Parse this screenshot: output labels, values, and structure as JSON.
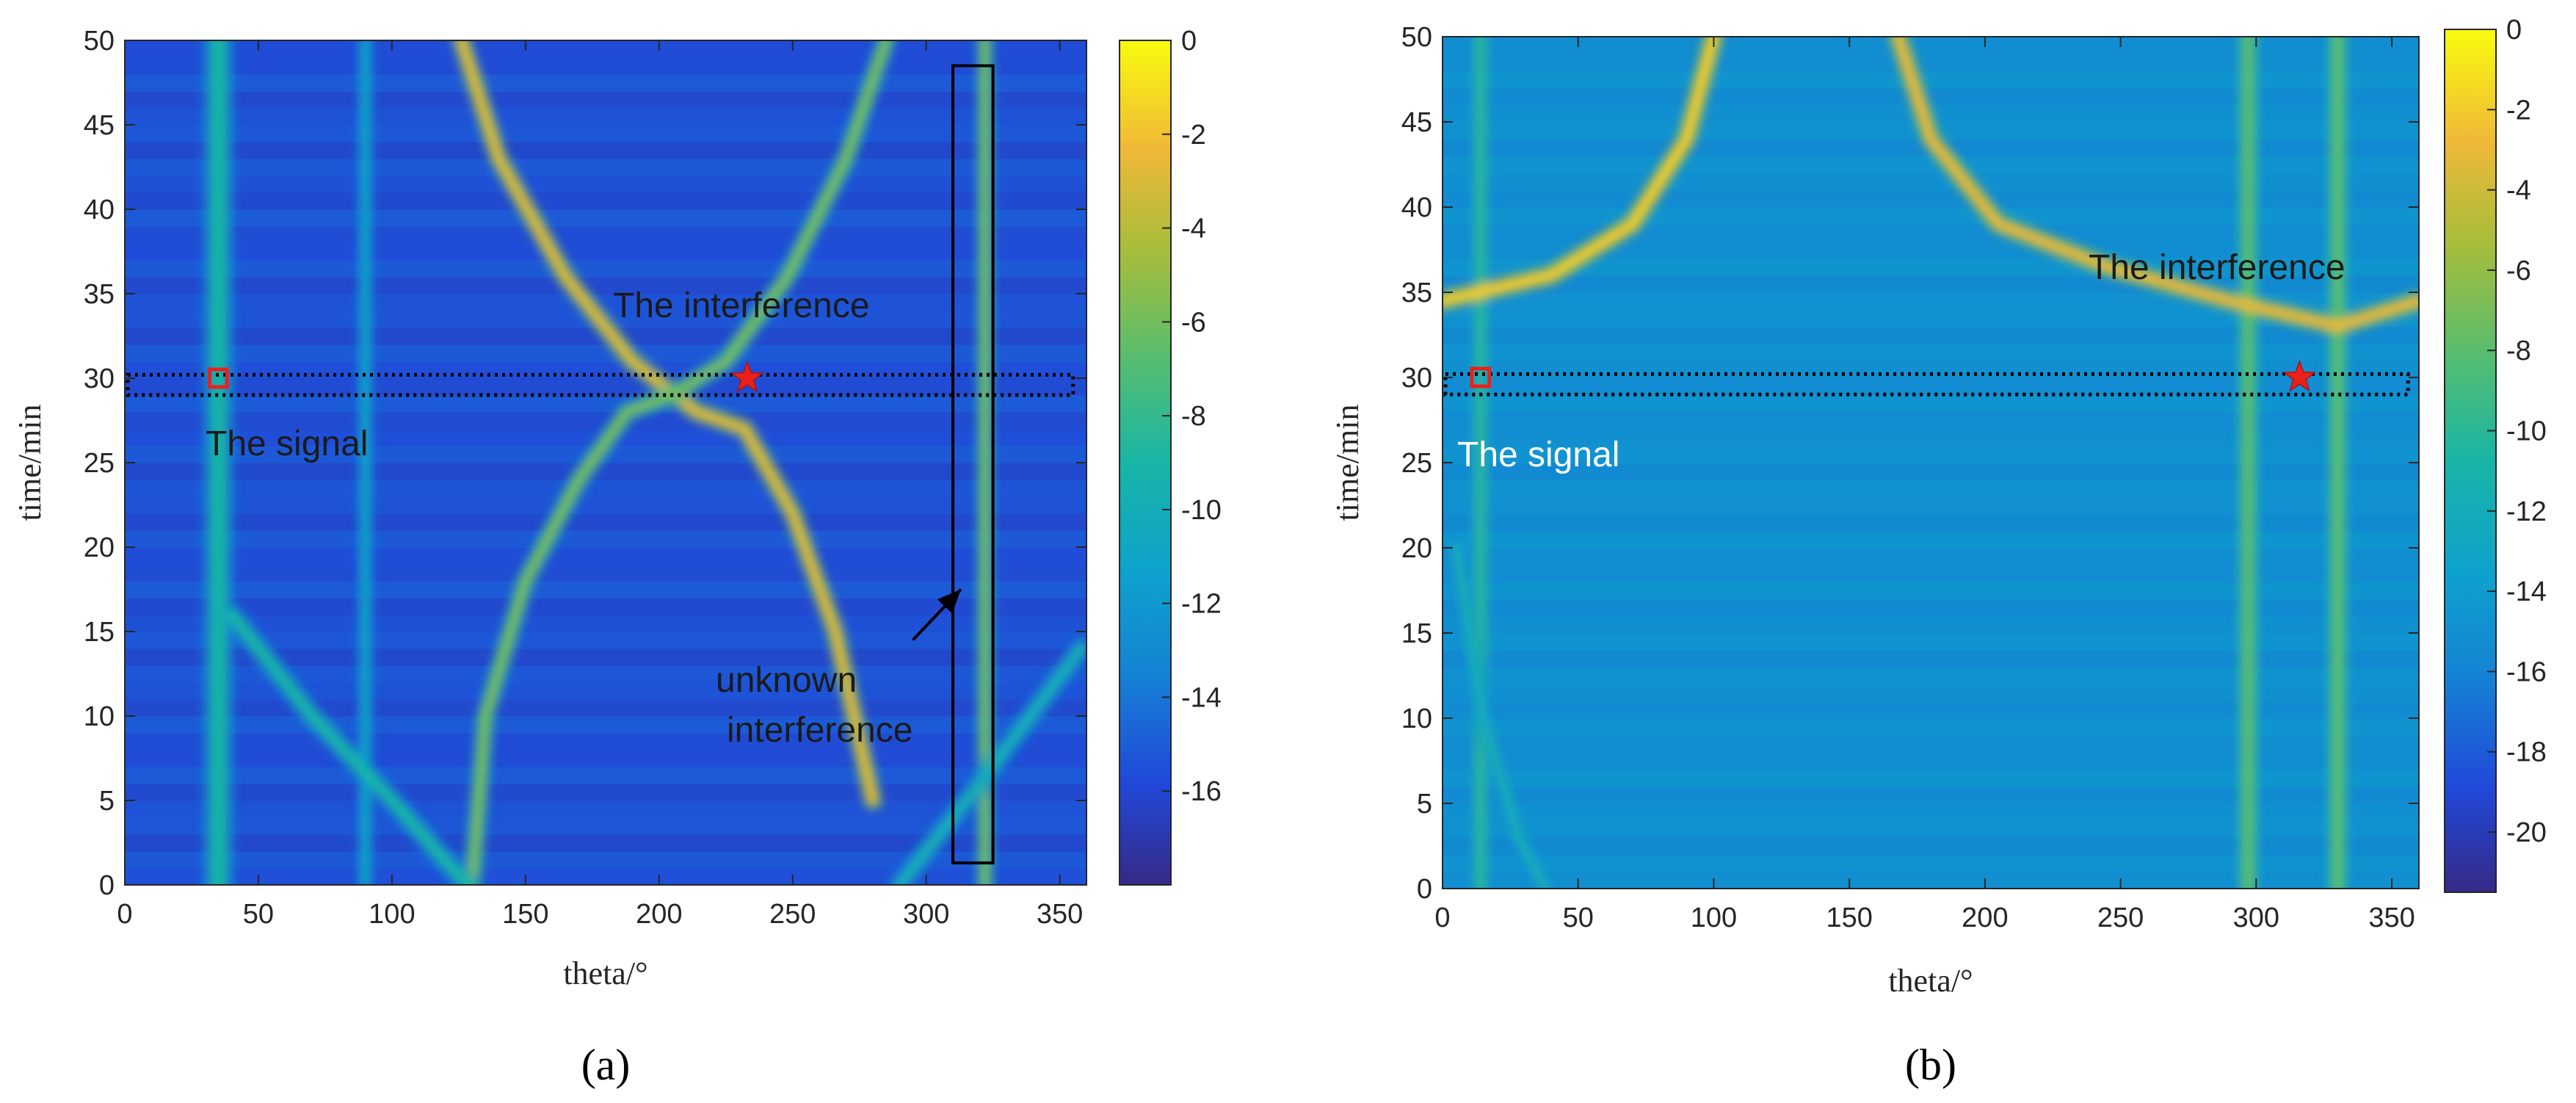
{
  "chart_data": [
    {
      "type": "heatmap",
      "panel_label": "(a)",
      "xlabel": "theta/°",
      "ylabel": "time/min",
      "xlim": [
        0,
        360
      ],
      "ylim": [
        0,
        50
      ],
      "xticks": [
        "0",
        "50",
        "100",
        "150",
        "200",
        "250",
        "300",
        "350"
      ],
      "yticks": [
        "0",
        "5",
        "10",
        "15",
        "20",
        "25",
        "30",
        "35",
        "40",
        "45",
        "50"
      ],
      "colorbar": {
        "ticks": [
          "0",
          "-2",
          "-4",
          "-6",
          "-8",
          "-10",
          "-12",
          "-14",
          "-16"
        ],
        "range": [
          -18,
          0
        ]
      },
      "background_level": -15.5,
      "features": [
        {
          "name": "signal track",
          "points": [
            [
              35,
              0
            ],
            [
              35,
              50
            ]
          ],
          "level": -9,
          "width": 14
        },
        {
          "name": "vertical track",
          "points": [
            [
              90,
              0
            ],
            [
              90,
              50
            ]
          ],
          "level": -11,
          "width": 8
        },
        {
          "name": "vertical track",
          "points": [
            [
              322,
              0
            ],
            [
              322,
              50
            ]
          ],
          "level": -6,
          "width": 8
        },
        {
          "name": "interference arc",
          "points": [
            [
              126,
              50
            ],
            [
              140,
              43
            ],
            [
              165,
              36
            ],
            [
              190,
              31
            ],
            [
              214,
              28
            ],
            [
              232,
              27
            ],
            [
              250,
              22
            ],
            [
              266,
              15
            ],
            [
              280,
              5
            ]
          ],
          "level": -3,
          "width": 9
        },
        {
          "name": "interference arc",
          "points": [
            [
              285,
              50
            ],
            [
              270,
              43
            ],
            [
              248,
              36
            ],
            [
              225,
              31
            ],
            [
              205,
              29
            ],
            [
              188,
              28
            ],
            [
              170,
              24
            ],
            [
              150,
              18
            ],
            [
              135,
              10
            ],
            [
              130,
              0
            ]
          ],
          "level": -6,
          "width": 9
        },
        {
          "name": "lower crossing",
          "points": [
            [
              40,
              16
            ],
            [
              70,
              10
            ],
            [
              100,
              5
            ],
            [
              128,
              0
            ]
          ],
          "level": -9,
          "width": 10
        },
        {
          "name": "lower crossing",
          "points": [
            [
              290,
              0
            ],
            [
              320,
              6
            ],
            [
              358,
              14
            ]
          ],
          "level": -10,
          "width": 10
        }
      ],
      "signal_marker": {
        "theta": 35,
        "time": 30,
        "label": "The signal"
      },
      "interference_marker": {
        "theta": 233,
        "time": 30,
        "label": "The interference"
      },
      "selection_band": {
        "theta": [
          0,
          355
        ],
        "time": [
          29,
          30.2
        ]
      },
      "unknown_box": {
        "theta": [
          310,
          325
        ],
        "time": [
          1.3,
          48.5
        ]
      },
      "unknown_arrow": {
        "from": [
          295,
          14.5
        ],
        "to": [
          313,
          17.5
        ],
        "label_line1": "unknown",
        "label_line2": "interference"
      }
    },
    {
      "type": "heatmap",
      "panel_label": "(b)",
      "xlabel": "theta/°",
      "ylabel": "time/min",
      "xlim": [
        0,
        360
      ],
      "ylim": [
        0,
        50
      ],
      "xticks": [
        "0",
        "50",
        "100",
        "150",
        "200",
        "250",
        "300",
        "350"
      ],
      "yticks": [
        "0",
        "5",
        "10",
        "15",
        "20",
        "25",
        "30",
        "35",
        "40",
        "45",
        "50"
      ],
      "colorbar": {
        "ticks": [
          "0",
          "-2",
          "-4",
          "-6",
          "-8",
          "-10",
          "-12",
          "-14",
          "-16",
          "-18",
          "-20"
        ],
        "range": [
          -21.5,
          0
        ]
      },
      "background_level": -15,
      "features": [
        {
          "name": "signal track",
          "points": [
            [
              14,
              0
            ],
            [
              14,
              50
            ]
          ],
          "level": -10,
          "width": 8
        },
        {
          "name": "interference track",
          "points": [
            [
              297,
              0
            ],
            [
              297,
              50
            ]
          ],
          "level": -8,
          "width": 10
        },
        {
          "name": "interference track",
          "points": [
            [
              330,
              0
            ],
            [
              330,
              50
            ]
          ],
          "level": -8,
          "width": 10
        },
        {
          "name": "interference arc",
          "points": [
            [
              0,
              34.5
            ],
            [
              40,
              36
            ],
            [
              70,
              39
            ],
            [
              90,
              44
            ],
            [
              100,
              50
            ]
          ],
          "level": -2,
          "width": 9
        },
        {
          "name": "interference arc",
          "points": [
            [
              168,
              50
            ],
            [
              180,
              44
            ],
            [
              205,
              39
            ],
            [
              245,
              36.5
            ],
            [
              290,
              34.5
            ],
            [
              330,
              33
            ],
            [
              360,
              34.5
            ]
          ],
          "level": -3,
          "width": 9
        },
        {
          "name": "lower arc",
          "points": [
            [
              5,
              20
            ],
            [
              15,
              10
            ],
            [
              28,
              3
            ],
            [
              38,
              0
            ]
          ],
          "level": -12,
          "width": 8
        }
      ],
      "signal_marker": {
        "theta": 14,
        "time": 30,
        "label": "The signal"
      },
      "interference_marker": {
        "theta": 316,
        "time": 30,
        "label": "The interference"
      },
      "selection_band": {
        "theta": [
          0,
          356
        ],
        "time": [
          29,
          30.2
        ]
      }
    }
  ]
}
